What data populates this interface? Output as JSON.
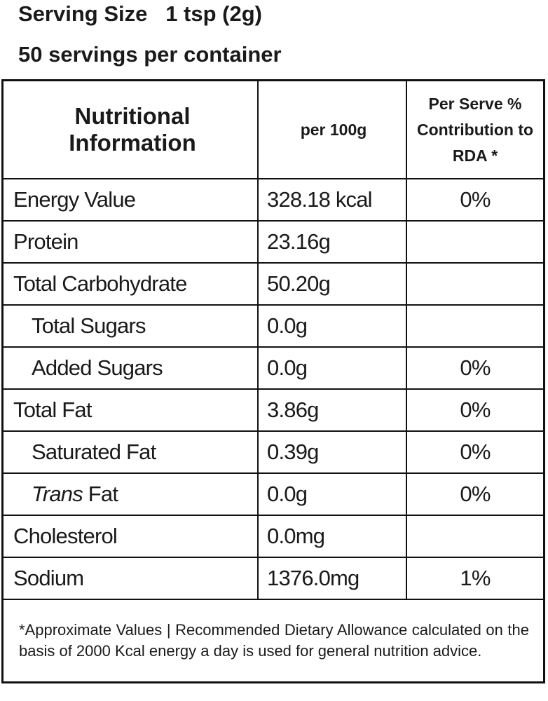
{
  "serving_size": "Serving Size   1 tsp (2g)",
  "servings_per_container": "50 servings per container",
  "table": {
    "header": [
      "Nutritional Information",
      "per 100g",
      "Per Serve % Contribution to RDA *"
    ],
    "rows": [
      {
        "nutrient": "Energy Value",
        "per_100g": "328.18 kcal",
        "rda": "0%"
      },
      {
        "nutrient": "Protein",
        "per_100g": "23.16g"
      },
      {
        "nutrient": "Total Carbohydrate",
        "per_100g": "50.20g"
      },
      {
        "nutrient": "Total Sugars",
        "per_100g": "0.0g"
      },
      {
        "nutrient": "Added Sugars",
        "per_100g": "0.0g",
        "rda": "0%"
      },
      {
        "nutrient": "Total Fat",
        "per_100g": "3.86g",
        "rda": "0%"
      },
      {
        "nutrient": "Saturated Fat",
        "per_100g": "0.39g",
        "rda": "0%"
      },
      {
        "nutrient": [
          "Trans",
          "Fat"
        ],
        "per_100g": "0.0g",
        "rda": "0%"
      },
      {
        "nutrient": "Cholesterol",
        "per_100g": "0.0mg"
      },
      {
        "nutrient": "Sodium",
        "per_100g": "1376.0mg",
        "rda": "1%"
      }
    ],
    "footnote": "*Approximate Values | Recommended Dietary Allowance calculated on the basis of 2000 Kcal energy a day is used for general nutrition advice."
  }
}
